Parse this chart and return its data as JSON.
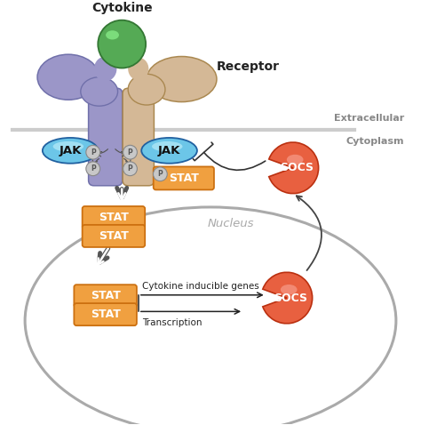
{
  "background_color": "#ffffff",
  "receptor_left_color": "#9b96c8",
  "receptor_right_color": "#d4b896",
  "cytokine_color": "#55aa55",
  "jak_color": "#6cc6e8",
  "jak_text_color": "#1a1a1a",
  "stat_color": "#f0a040",
  "p_color": "#aaaaaa",
  "socs_color": "#e86040",
  "nucleus_color": "#aaaaaa",
  "membrane_color": "#bbbbbb",
  "label_cytokine": "Cytokine",
  "label_receptor": "Receptor",
  "label_extracellular": "Extracellular",
  "label_cytoplasm": "Cytoplasm",
  "label_jak": "JAK",
  "label_stat": "STAT",
  "label_socs": "SOCS",
  "label_nucleus": "Nucleus",
  "label_transcription": "Transcription",
  "label_cytokine_genes": "Cytokine inducible genes"
}
